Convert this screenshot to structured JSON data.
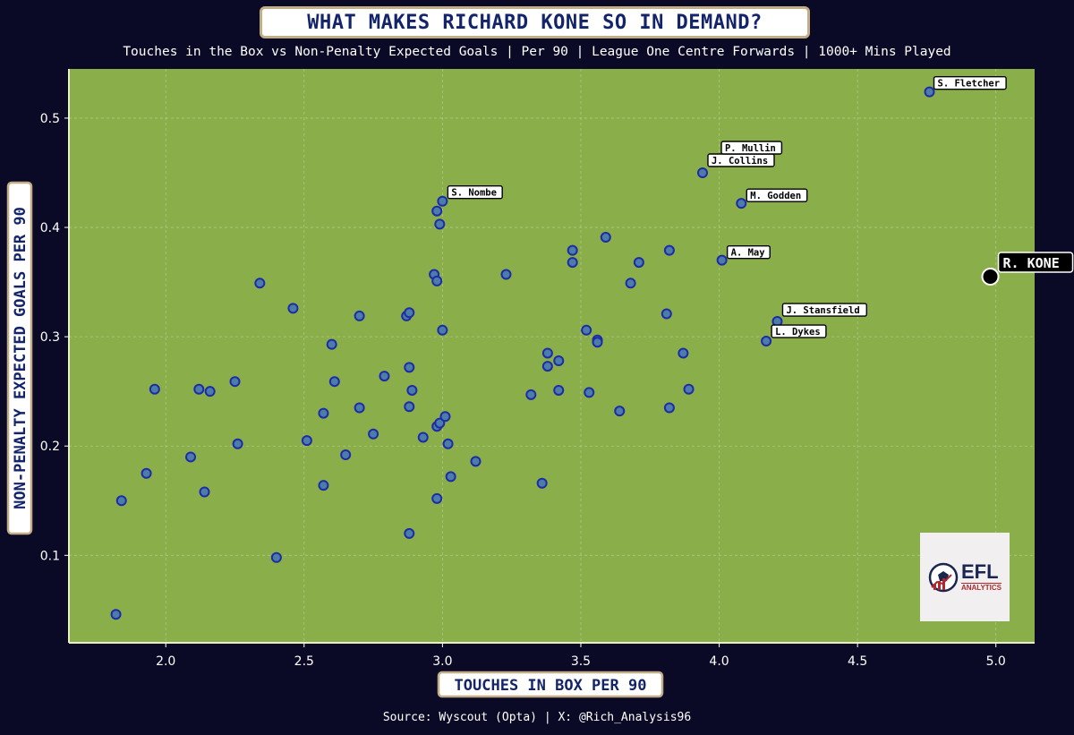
{
  "title": "WHAT MAKES RICHARD KONE SO IN DEMAND?",
  "subtitle": "Touches in the Box vs Non-Penalty Expected Goals | Per 90 | League One Centre Forwards | 1000+ Mins Played",
  "source": "Source: Wyscout (Opta) | X: @Rich_Analysis96",
  "logo": {
    "line1": "EFL",
    "line2": "ANALYTICS"
  },
  "colors": {
    "background": "#0b0a26",
    "plot_background": "#8aae4a",
    "point_fill": "#4a7da8",
    "point_edge": "#1f2aa8",
    "highlight_fill": "#000000",
    "highlight_edge": "#ffffff",
    "label_box_border": "#c2ad86",
    "axis_title_color": "#13246b"
  },
  "chart_data": {
    "type": "scatter",
    "xlabel": "TOUCHES IN BOX PER 90",
    "ylabel": "NON-PENALTY EXPECTED GOALS PER 90",
    "xlim": [
      1.65,
      5.14
    ],
    "ylim": [
      0.02,
      0.545
    ],
    "x_ticks": [
      "2.0",
      "2.5",
      "3.0",
      "3.5",
      "4.0",
      "4.5",
      "5.0"
    ],
    "y_ticks": [
      "0.1",
      "0.2",
      "0.3",
      "0.4",
      "0.5"
    ],
    "grid": true,
    "points": [
      {
        "x": 1.82,
        "y": 0.046
      },
      {
        "x": 1.84,
        "y": 0.15
      },
      {
        "x": 1.93,
        "y": 0.175
      },
      {
        "x": 1.96,
        "y": 0.252
      },
      {
        "x": 2.09,
        "y": 0.19
      },
      {
        "x": 2.12,
        "y": 0.252
      },
      {
        "x": 2.14,
        "y": 0.158
      },
      {
        "x": 2.16,
        "y": 0.25
      },
      {
        "x": 2.25,
        "y": 0.259
      },
      {
        "x": 2.26,
        "y": 0.202
      },
      {
        "x": 2.34,
        "y": 0.349
      },
      {
        "x": 2.4,
        "y": 0.098
      },
      {
        "x": 2.46,
        "y": 0.326
      },
      {
        "x": 2.51,
        "y": 0.205
      },
      {
        "x": 2.57,
        "y": 0.164
      },
      {
        "x": 2.57,
        "y": 0.23
      },
      {
        "x": 2.6,
        "y": 0.293
      },
      {
        "x": 2.61,
        "y": 0.259
      },
      {
        "x": 2.65,
        "y": 0.192
      },
      {
        "x": 2.7,
        "y": 0.319
      },
      {
        "x": 2.7,
        "y": 0.235
      },
      {
        "x": 2.75,
        "y": 0.211
      },
      {
        "x": 2.79,
        "y": 0.264
      },
      {
        "x": 2.87,
        "y": 0.319
      },
      {
        "x": 2.88,
        "y": 0.322
      },
      {
        "x": 2.88,
        "y": 0.272
      },
      {
        "x": 2.88,
        "y": 0.236
      },
      {
        "x": 2.88,
        "y": 0.12
      },
      {
        "x": 2.89,
        "y": 0.251
      },
      {
        "x": 2.93,
        "y": 0.208
      },
      {
        "x": 2.97,
        "y": 0.357
      },
      {
        "x": 2.98,
        "y": 0.351
      },
      {
        "x": 2.98,
        "y": 0.415
      },
      {
        "x": 2.98,
        "y": 0.152
      },
      {
        "x": 2.98,
        "y": 0.218
      },
      {
        "x": 2.99,
        "y": 0.221
      },
      {
        "x": 2.99,
        "y": 0.403
      },
      {
        "x": 3.0,
        "y": 0.306
      },
      {
        "x": 3.01,
        "y": 0.227
      },
      {
        "x": 3.02,
        "y": 0.202
      },
      {
        "x": 3.03,
        "y": 0.172
      },
      {
        "x": 3.12,
        "y": 0.186
      },
      {
        "x": 3.23,
        "y": 0.357
      },
      {
        "x": 3.32,
        "y": 0.247
      },
      {
        "x": 3.36,
        "y": 0.166
      },
      {
        "x": 3.38,
        "y": 0.285
      },
      {
        "x": 3.38,
        "y": 0.273
      },
      {
        "x": 3.42,
        "y": 0.278
      },
      {
        "x": 3.42,
        "y": 0.251
      },
      {
        "x": 3.47,
        "y": 0.379
      },
      {
        "x": 3.47,
        "y": 0.368
      },
      {
        "x": 3.52,
        "y": 0.306
      },
      {
        "x": 3.53,
        "y": 0.249
      },
      {
        "x": 3.56,
        "y": 0.297
      },
      {
        "x": 3.56,
        "y": 0.295
      },
      {
        "x": 3.59,
        "y": 0.391
      },
      {
        "x": 3.64,
        "y": 0.232
      },
      {
        "x": 3.68,
        "y": 0.349
      },
      {
        "x": 3.71,
        "y": 0.368
      },
      {
        "x": 3.81,
        "y": 0.321
      },
      {
        "x": 3.82,
        "y": 0.379
      },
      {
        "x": 3.82,
        "y": 0.235
      },
      {
        "x": 3.87,
        "y": 0.285
      },
      {
        "x": 3.89,
        "y": 0.252
      },
      {
        "x": 3.0,
        "y": 0.424,
        "label": "S. Nombe"
      },
      {
        "x": 3.94,
        "y": 0.45,
        "label": "J. Collins"
      },
      {
        "x": 3.94,
        "y": 0.45,
        "label": "P. Mullin",
        "label_only": true
      },
      {
        "x": 4.08,
        "y": 0.422,
        "label": "M. Godden"
      },
      {
        "x": 4.01,
        "y": 0.37,
        "label": "A. May"
      },
      {
        "x": 4.21,
        "y": 0.314,
        "label": "J. Stansfield"
      },
      {
        "x": 4.17,
        "y": 0.296,
        "label": "L. Dykes"
      },
      {
        "x": 4.76,
        "y": 0.524,
        "label": "S. Fletcher"
      }
    ],
    "highlight": {
      "x": 4.98,
      "y": 0.355,
      "label": "R. KONE"
    }
  }
}
